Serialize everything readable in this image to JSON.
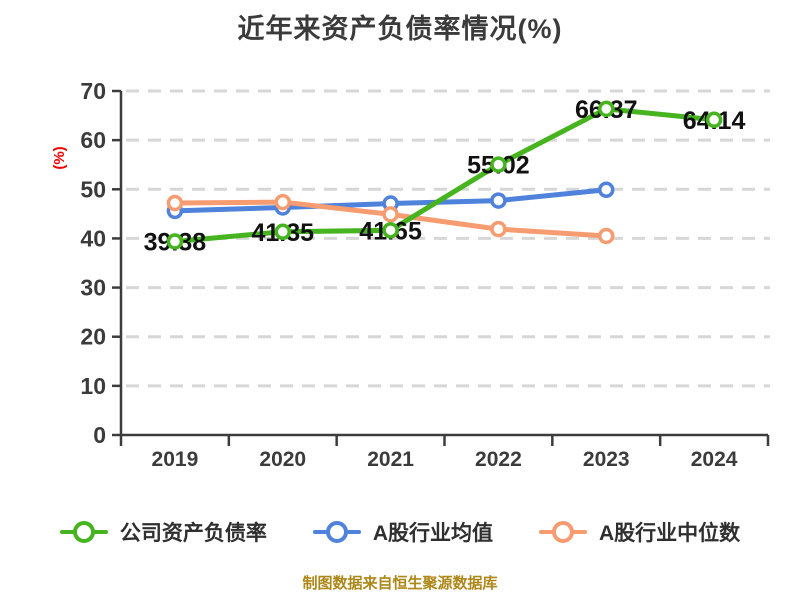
{
  "title": {
    "text": "近年来资产负债率情况(%)",
    "color": "#3b3b3b"
  },
  "source_note": {
    "text": "制图数据来自恒生聚源数据库",
    "color": "#ad8718"
  },
  "colors": {
    "company_series": "#45b41e",
    "industry_mean_series": "#4e82db",
    "industry_median_series": "#f79b71",
    "axis": "#3c3c3c",
    "gridline": "#d7d7d7",
    "tick_label": "#3b3b3b",
    "data_label": "#111111",
    "y_axis_unit": "#f40000",
    "marker_fill": "#ffffff"
  },
  "chart_data": {
    "type": "line",
    "title": "近年来资产负债率情况(%)",
    "categories": [
      "2019",
      "2020",
      "2021",
      "2022",
      "2023",
      "2024"
    ],
    "xlabel": "",
    "ylabel": "(%)",
    "ylim": [
      0,
      70
    ],
    "yticks": [
      0,
      10,
      20,
      30,
      40,
      50,
      60,
      70
    ],
    "grid": "horizontal-dashed",
    "legend_position": "bottom",
    "marker_style": "open-circle",
    "series": [
      {
        "name": "公司资产负债率",
        "color": "#45b41e",
        "values": [
          39.38,
          41.35,
          41.65,
          55.02,
          66.37,
          64.14
        ],
        "data_labels": [
          "39.38",
          "41.35",
          "41.65",
          "55.02",
          "66.37",
          "64.14"
        ]
      },
      {
        "name": "A股行业均值",
        "color": "#4e82db",
        "values": [
          45.6,
          46.3,
          47.1,
          47.7,
          49.9,
          null
        ],
        "data_labels": []
      },
      {
        "name": "A股行业中位数",
        "color": "#f79b71",
        "values": [
          47.2,
          47.4,
          44.9,
          41.9,
          40.5,
          null
        ],
        "data_labels": []
      }
    ]
  }
}
